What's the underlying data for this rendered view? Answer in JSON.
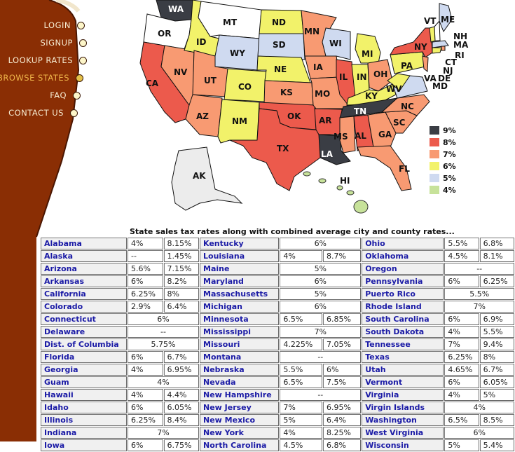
{
  "nav": {
    "items": [
      {
        "label": "LOGIN",
        "active": false
      },
      {
        "label": "SIGNUP",
        "active": false
      },
      {
        "label": "LOOKUP RATES",
        "active": false
      },
      {
        "label": "BROWSE STATES",
        "active": true
      },
      {
        "label": "FAQ",
        "active": false
      },
      {
        "label": "CONTACT US",
        "active": false
      }
    ]
  },
  "colors": {
    "sidebar_brown": "#8a2e04",
    "nav_text": "#f7ecd2",
    "nav_active": "#f0b64a",
    "link_blue": "#1b1ba6",
    "rate_9": "#3a3d44",
    "rate_8": "#ec5a4c",
    "rate_7": "#f89a72",
    "rate_6": "#f2f26a",
    "rate_5": "#cfdaf0",
    "rate_4": "#c7e29a",
    "no_tax": "#ffffff"
  },
  "map": {
    "legend": [
      {
        "label": "9%",
        "color": "#3a3d44"
      },
      {
        "label": "8%",
        "color": "#ec5a4c"
      },
      {
        "label": "7%",
        "color": "#f89a72"
      },
      {
        "label": "6%",
        "color": "#f2f26a"
      },
      {
        "label": "5%",
        "color": "#cfdaf0"
      },
      {
        "label": "4%",
        "color": "#c7e29a"
      }
    ],
    "state_labels": [
      "WA",
      "OR",
      "MT",
      "ID",
      "ND",
      "SD",
      "WY",
      "NV",
      "CA",
      "UT",
      "CO",
      "NE",
      "KS",
      "AZ",
      "NM",
      "OK",
      "TX",
      "MN",
      "IA",
      "MO",
      "WI",
      "IL",
      "MI",
      "IN",
      "OH",
      "KY",
      "TN",
      "AR",
      "LA",
      "MS",
      "AL",
      "GA",
      "SC",
      "NC",
      "FL",
      "PA",
      "NY",
      "VT",
      "ME",
      "NH",
      "MA",
      "RI",
      "CT",
      "NJ",
      "DE",
      "MD",
      "WV",
      "VA",
      "AK",
      "HI"
    ]
  },
  "table": {
    "caption": "State sales tax rates along with combined average city and county rates...",
    "columns": [
      [
        {
          "state": "Alabama",
          "rates": [
            "4%",
            "8.15%"
          ]
        },
        {
          "state": "Alaska",
          "rates": [
            "--",
            "1.45%"
          ]
        },
        {
          "state": "Arizona",
          "rates": [
            "5.6%",
            "7.15%"
          ]
        },
        {
          "state": "Arkansas",
          "rates": [
            "6%",
            "8.2%"
          ]
        },
        {
          "state": "California",
          "rates": [
            "6.25%",
            "8%"
          ]
        },
        {
          "state": "Colorado",
          "rates": [
            "2.9%",
            "6.4%"
          ]
        },
        {
          "state": "Connecticut",
          "rates": [
            "6%"
          ]
        },
        {
          "state": "Delaware",
          "rates": [
            "--"
          ]
        },
        {
          "state": "Dist. of Columbia",
          "rates": [
            "5.75%"
          ]
        },
        {
          "state": "Florida",
          "rates": [
            "6%",
            "6.7%"
          ]
        },
        {
          "state": "Georgia",
          "rates": [
            "4%",
            "6.95%"
          ]
        },
        {
          "state": "Guam",
          "rates": [
            "4%"
          ]
        },
        {
          "state": "Hawaii",
          "rates": [
            "4%",
            "4.4%"
          ]
        },
        {
          "state": "Idaho",
          "rates": [
            "6%",
            "6.05%"
          ]
        },
        {
          "state": "Illinois",
          "rates": [
            "6.25%",
            "8.4%"
          ]
        },
        {
          "state": "Indiana",
          "rates": [
            "7%"
          ]
        },
        {
          "state": "Iowa",
          "rates": [
            "6%",
            "6.75%"
          ]
        }
      ],
      [
        {
          "state": "Kentucky",
          "rates": [
            "6%"
          ]
        },
        {
          "state": "Louisiana",
          "rates": [
            "4%",
            "8.7%"
          ]
        },
        {
          "state": "Maine",
          "rates": [
            "5%"
          ]
        },
        {
          "state": "Maryland",
          "rates": [
            "6%"
          ]
        },
        {
          "state": "Massachusetts",
          "rates": [
            "5%"
          ]
        },
        {
          "state": "Michigan",
          "rates": [
            "6%"
          ]
        },
        {
          "state": "Minnesota",
          "rates": [
            "6.5%",
            "6.85%"
          ]
        },
        {
          "state": "Mississippi",
          "rates": [
            "7%"
          ]
        },
        {
          "state": "Missouri",
          "rates": [
            "4.225%",
            "7.05%"
          ]
        },
        {
          "state": "Montana",
          "rates": [
            "--"
          ]
        },
        {
          "state": "Nebraska",
          "rates": [
            "5.5%",
            "6%"
          ]
        },
        {
          "state": "Nevada",
          "rates": [
            "6.5%",
            "7.5%"
          ]
        },
        {
          "state": "New Hampshire",
          "rates": [
            "--"
          ]
        },
        {
          "state": "New Jersey",
          "rates": [
            "7%",
            "6.95%"
          ]
        },
        {
          "state": "New Mexico",
          "rates": [
            "5%",
            "6.4%"
          ]
        },
        {
          "state": "New York",
          "rates": [
            "4%",
            "8.25%"
          ]
        },
        {
          "state": "North Carolina",
          "rates": [
            "4.5%",
            "6.8%"
          ]
        }
      ],
      [
        {
          "state": "Ohio",
          "rates": [
            "5.5%",
            "6.8%"
          ]
        },
        {
          "state": "Oklahoma",
          "rates": [
            "4.5%",
            "8.1%"
          ]
        },
        {
          "state": "Oregon",
          "rates": [
            "--"
          ]
        },
        {
          "state": "Pennsylvania",
          "rates": [
            "6%",
            "6.25%"
          ]
        },
        {
          "state": "Puerto Rico",
          "rates": [
            "5.5%"
          ]
        },
        {
          "state": "Rhode Island",
          "rates": [
            "7%"
          ]
        },
        {
          "state": "South Carolina",
          "rates": [
            "6%",
            "6.9%"
          ]
        },
        {
          "state": "South Dakota",
          "rates": [
            "4%",
            "5.5%"
          ]
        },
        {
          "state": "Tennessee",
          "rates": [
            "7%",
            "9.4%"
          ]
        },
        {
          "state": "Texas",
          "rates": [
            "6.25%",
            "8%"
          ]
        },
        {
          "state": "Utah",
          "rates": [
            "4.65%",
            "6.7%"
          ]
        },
        {
          "state": "Vermont",
          "rates": [
            "6%",
            "6.05%"
          ]
        },
        {
          "state": "Virginia",
          "rates": [
            "4%",
            "5%"
          ]
        },
        {
          "state": "Virgin Islands",
          "rates": [
            "4%"
          ]
        },
        {
          "state": "Washington",
          "rates": [
            "6.5%",
            "8.5%"
          ]
        },
        {
          "state": "West Virginia",
          "rates": [
            "6%"
          ]
        },
        {
          "state": "Wisconsin",
          "rates": [
            "5%",
            "5.4%"
          ]
        }
      ]
    ]
  }
}
